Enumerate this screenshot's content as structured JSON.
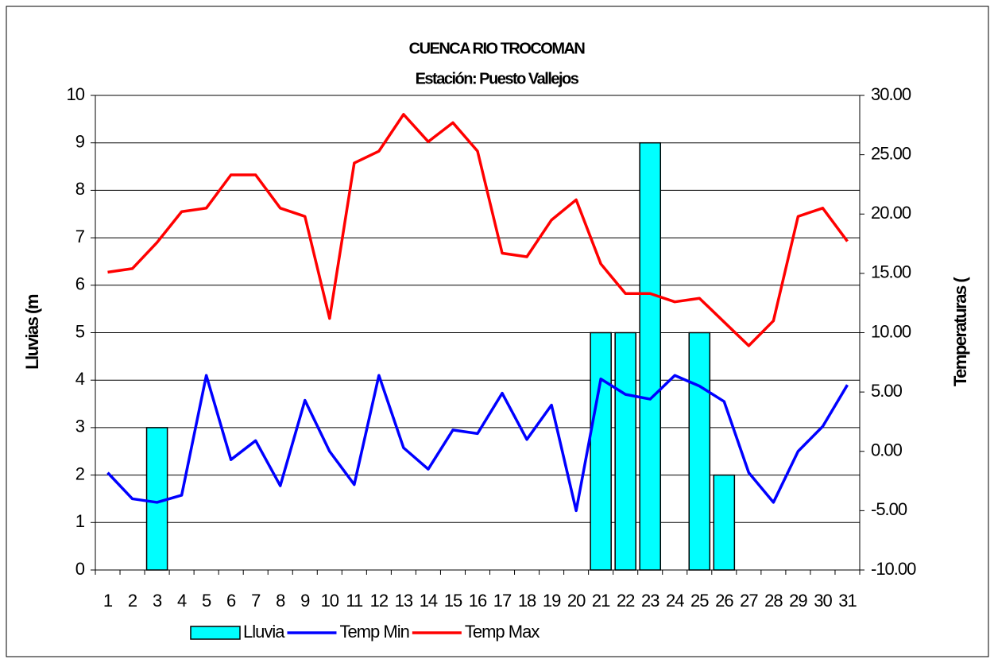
{
  "chart_data": {
    "type": "bar-line",
    "title": "CUENCA RIO TROCOMAN",
    "subtitle": "Estación: Puesto Vallejos",
    "y_label": "Lluvias (m",
    "y2_label": "Temperaturas (",
    "categories": [
      "1",
      "2",
      "3",
      "4",
      "5",
      "6",
      "7",
      "8",
      "9",
      "10",
      "11",
      "12",
      "13",
      "14",
      "15",
      "16",
      "17",
      "18",
      "19",
      "20",
      "21",
      "22",
      "23",
      "24",
      "25",
      "26",
      "27",
      "28",
      "29",
      "30",
      "31"
    ],
    "series": [
      {
        "name": "Lluvia",
        "type": "bar",
        "color": "#00ffff",
        "axis": "y",
        "values": [
          0,
          0,
          3,
          0,
          0,
          0,
          0,
          0,
          0,
          0,
          0,
          0,
          0,
          0,
          0,
          0,
          0,
          0,
          0,
          0,
          5,
          5,
          9,
          0,
          5,
          2,
          0,
          0,
          0,
          0,
          0
        ]
      },
      {
        "name": "Temp Min",
        "type": "line",
        "color": "#0000ff",
        "axis": "y2",
        "values": [
          -1.8,
          -4.0,
          -4.3,
          -3.7,
          6.4,
          -0.7,
          0.9,
          -2.9,
          4.3,
          0.0,
          -2.8,
          6.4,
          0.3,
          -1.5,
          1.8,
          1.5,
          4.9,
          1.0,
          3.9,
          -5.0,
          6.1,
          4.8,
          4.4,
          6.4,
          5.5,
          4.2,
          -1.8,
          -4.3,
          0.0,
          2.1,
          5.6
        ]
      },
      {
        "name": "Temp Max",
        "type": "line",
        "color": "#ff0000",
        "axis": "y2",
        "values": [
          15.1,
          15.4,
          17.6,
          20.2,
          20.5,
          23.3,
          23.3,
          20.5,
          19.8,
          11.2,
          24.3,
          25.3,
          28.4,
          26.1,
          27.7,
          25.3,
          16.7,
          16.4,
          19.5,
          21.2,
          15.8,
          13.3,
          13.3,
          12.6,
          12.9,
          10.9,
          8.9,
          11.0,
          19.8,
          20.5,
          17.7
        ]
      }
    ],
    "ylim": [
      0,
      10
    ],
    "yticks": [
      0,
      1,
      2,
      3,
      4,
      5,
      6,
      7,
      8,
      9,
      10
    ],
    "y2lim": [
      -10,
      30
    ],
    "y2ticks": [
      {
        "value": -10,
        "label": "-10.00"
      },
      {
        "value": -5,
        "label": "-5.00"
      },
      {
        "value": 0,
        "label": "0.00"
      },
      {
        "value": 5,
        "label": "5.00"
      },
      {
        "value": 10,
        "label": "10.00"
      },
      {
        "value": 15,
        "label": "15.00"
      },
      {
        "value": 20,
        "label": "20.00"
      },
      {
        "value": 25,
        "label": "25.00"
      },
      {
        "value": 30,
        "label": "30.00"
      }
    ],
    "grid": true,
    "legend": "bottom"
  }
}
